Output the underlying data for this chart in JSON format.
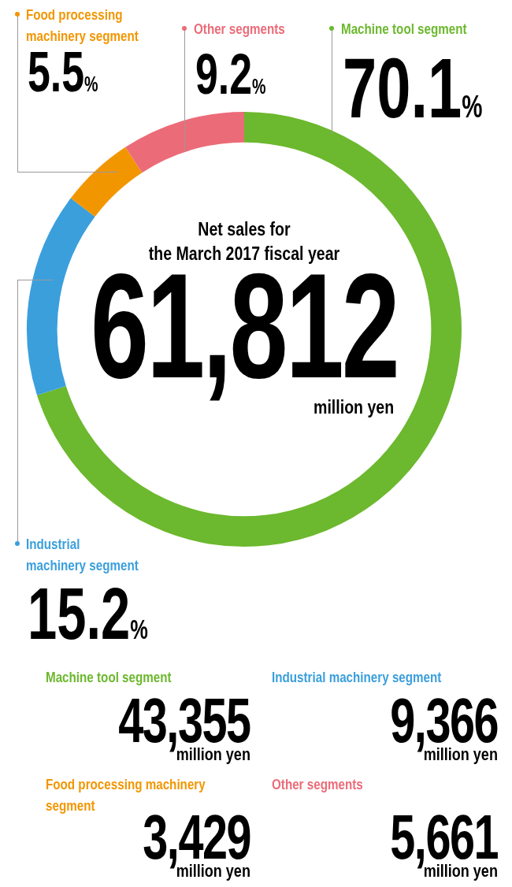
{
  "chart_data": {
    "type": "donut",
    "categories": [
      "Machine tool segment",
      "Industrial machinery segment",
      "Food processing machinery segment",
      "Other segments"
    ],
    "values": [
      70.1,
      15.2,
      5.5,
      9.2
    ],
    "legend": "top",
    "colors": [
      "#6cb82e",
      "#3b9fdc",
      "#f29600",
      "#ec6b78"
    ],
    "value_labels": [
      "70.1%",
      "15.2%",
      "5.5%",
      "9.2%"
    ],
    "annotations": [
      "Net sales for",
      "the March 2017 fiscal year",
      "61,812",
      "million yen",
      "43,355",
      "9,366",
      "3,429",
      "5,661"
    ]
  }
}
